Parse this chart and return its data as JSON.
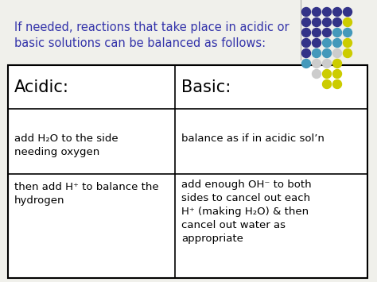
{
  "bg_color": "#f0f0eb",
  "header_text_line1": "If needed, reactions that take place in acidic or",
  "header_text_line2": "basic solutions can be balanced as follows:",
  "header_color": "#3333aa",
  "header_fontsize": 10.5,
  "acidic_header": "Acidic:",
  "basic_header": "Basic:",
  "acidic_row1": "add H₂O to the side\nneeding oxygen",
  "basic_row1": "balance as if in acidic sol’n",
  "acidic_row2": "then add H⁺ to balance the\nhydrogen",
  "basic_row2": "add enough OH⁻ to both\nsides to cancel out each\nH⁺ (making H₂O) & then\ncancel out water as\nappropriate",
  "table_fontsize": 9.5,
  "header_cell_fontsize": 15,
  "dot_pattern": [
    [
      1,
      "#333388",
      0
    ],
    [
      2,
      "#333388",
      0
    ],
    [
      3,
      "#333388",
      0
    ],
    [
      4,
      "#333388",
      0
    ],
    [
      5,
      "#333388",
      0
    ],
    [
      1,
      "#333388",
      1
    ],
    [
      2,
      "#333388",
      1
    ],
    [
      3,
      "#333388",
      1
    ],
    [
      4,
      "#333388",
      1
    ],
    [
      5,
      "#cccc00",
      1
    ],
    [
      1,
      "#333388",
      2
    ],
    [
      2,
      "#333388",
      2
    ],
    [
      3,
      "#333388",
      2
    ],
    [
      4,
      "#4499bb",
      2
    ],
    [
      5,
      "#4499bb",
      2
    ],
    [
      1,
      "#333388",
      3
    ],
    [
      2,
      "#333388",
      3
    ],
    [
      3,
      "#4499bb",
      3
    ],
    [
      4,
      "#4499bb",
      3
    ],
    [
      5,
      "#cccc00",
      3
    ],
    [
      1,
      "#333388",
      4
    ],
    [
      2,
      "#4499bb",
      4
    ],
    [
      3,
      "#4499bb",
      4
    ],
    [
      4,
      "#cccccc",
      4
    ],
    [
      5,
      "#cccc00",
      4
    ],
    [
      1,
      "#4499bb",
      5
    ],
    [
      2,
      "#cccccc",
      5
    ],
    [
      3,
      "#cccccc",
      5
    ],
    [
      4,
      "#cccc00",
      5
    ],
    [
      2,
      "#cccccc",
      6
    ],
    [
      3,
      "#cccc00",
      6
    ],
    [
      4,
      "#cccc00",
      6
    ],
    [
      3,
      "#cccc00",
      7
    ],
    [
      4,
      "#cccc00",
      7
    ]
  ]
}
